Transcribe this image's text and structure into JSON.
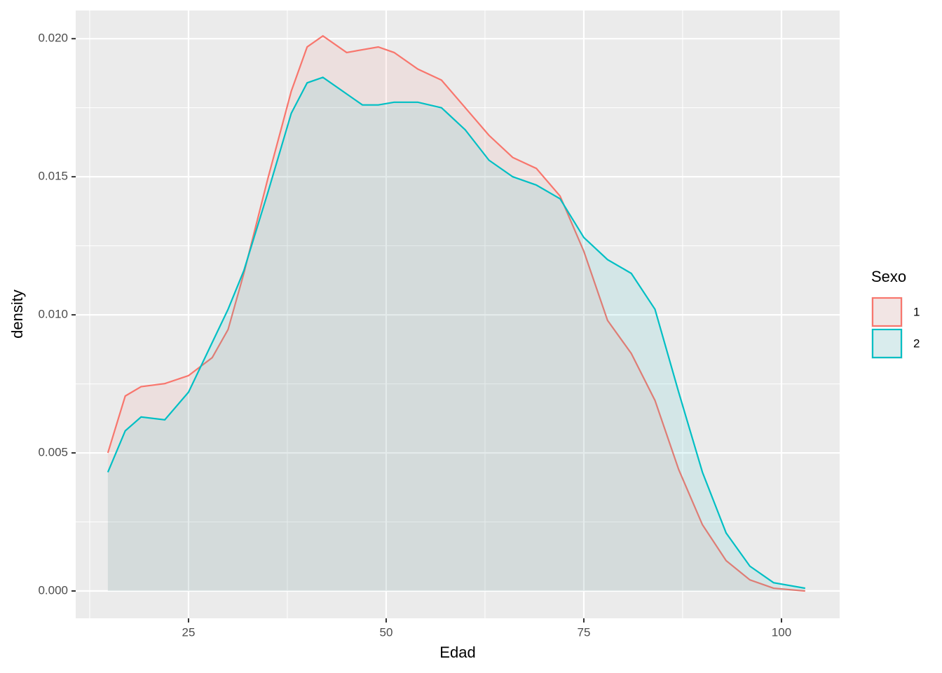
{
  "chart_data": {
    "type": "density",
    "x_label": "Edad",
    "y_label": "density",
    "legend_title": "Sexo",
    "legend_position": "right",
    "grid": true,
    "x": [
      14.8,
      17,
      19,
      22,
      25,
      28,
      30,
      32,
      35,
      38,
      40,
      42,
      45,
      47,
      49,
      51,
      54,
      57,
      60,
      63,
      66,
      69,
      72,
      75,
      78,
      81,
      84,
      87,
      90,
      93,
      96,
      99,
      103
    ],
    "series": [
      {
        "name": "1",
        "color": "#F8766D",
        "values": [
          0.005,
          0.00706,
          0.0074,
          0.00751,
          0.0078,
          0.00845,
          0.00947,
          0.0115,
          0.0149,
          0.0181,
          0.0197,
          0.0201,
          0.0195,
          0.0196,
          0.0197,
          0.0195,
          0.0189,
          0.0185,
          0.0175,
          0.0165,
          0.0157,
          0.0153,
          0.0143,
          0.0123,
          0.0098,
          0.0086,
          0.0069,
          0.0044,
          0.0024,
          0.0011,
          0.0004,
          0.0001,
          0.0
        ]
      },
      {
        "name": "2",
        "color": "#00BFC4",
        "values": [
          0.0043,
          0.0058,
          0.0063,
          0.0062,
          0.0072,
          0.009,
          0.0102,
          0.0116,
          0.0144,
          0.0173,
          0.0184,
          0.0186,
          0.018,
          0.0176,
          0.0176,
          0.0177,
          0.0177,
          0.0175,
          0.0167,
          0.0156,
          0.015,
          0.0147,
          0.0142,
          0.0128,
          0.012,
          0.0115,
          0.0102,
          0.0072,
          0.0043,
          0.0021,
          0.0009,
          0.0003,
          0.0001
        ]
      }
    ],
    "xlim": [
      10.73,
      107.36
    ],
    "xticks": [
      25,
      50,
      75,
      100
    ],
    "ylim": [
      -0.00099,
      0.02102
    ],
    "yticks": [
      {
        "value": 0,
        "label": "0.000"
      },
      {
        "value": 0.005,
        "label": "0.005"
      },
      {
        "value": 0.01,
        "label": "0.010"
      },
      {
        "value": 0.015,
        "label": "0.015"
      },
      {
        "value": 0.02,
        "label": "0.020"
      }
    ]
  }
}
